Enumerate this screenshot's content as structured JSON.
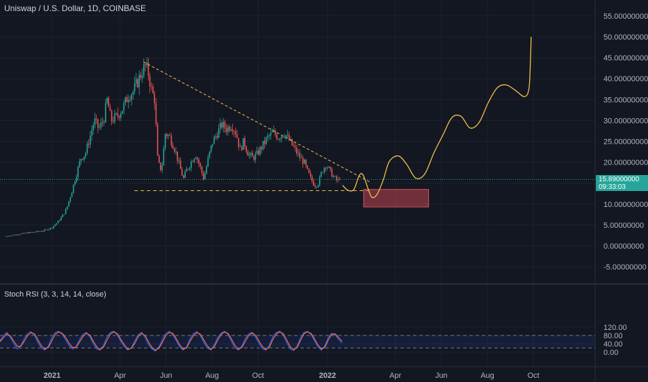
{
  "header": {
    "title": "Uniswap / U.S. Dollar, 1D, COINBASE"
  },
  "indicator": {
    "title": "Stoch RSI (3, 3, 14, 14, close)"
  },
  "price_badge": {
    "price": "15.89000000",
    "countdown": "09:33:03"
  },
  "colors": {
    "background": "#131722",
    "up": "#26a69a",
    "down": "#ef5350",
    "projection": "#f5c04a",
    "k_line": "#2962ff",
    "d_line": "#ff6d3a",
    "zone": "#e0505a"
  },
  "chart_data": [
    {
      "type": "candlestick",
      "title": "Uniswap / U.S. Dollar, 1D, COINBASE",
      "y_ticks": [
        "55.00000000",
        "50.00000000",
        "45.00000000",
        "40.00000000",
        "35.00000000",
        "30.00000000",
        "25.00000000",
        "20.00000000",
        "15.00000000",
        "10.00000000",
        "5.00000000",
        "0.00000000",
        "-5.00000000"
      ],
      "y_tick_values": [
        55,
        50,
        45,
        40,
        35,
        30,
        25,
        20,
        15,
        10,
        5,
        0,
        -5
      ],
      "x_ticks": [
        "2021",
        "Apr",
        "Jun",
        "Aug",
        "Oct",
        "2022",
        "Apr",
        "Jun",
        "Aug",
        "Oct"
      ],
      "x_tick_dates": [
        "2021-01-01",
        "2021-04-01",
        "2021-06-01",
        "2021-08-01",
        "2021-10-01",
        "2022-01-01",
        "2022-04-01",
        "2022-06-01",
        "2022-08-01",
        "2022-10-01"
      ],
      "last_price": 15.89,
      "price_path": [
        [
          "2020-11-01",
          2.3
        ],
        [
          "2020-11-25",
          3.0
        ],
        [
          "2020-12-20",
          3.6
        ],
        [
          "2020-12-31",
          4.3
        ],
        [
          "2021-01-08",
          5.6
        ],
        [
          "2021-01-14",
          7.0
        ],
        [
          "2021-01-20",
          8.8
        ],
        [
          "2021-01-27",
          13.0
        ],
        [
          "2021-02-02",
          17.0
        ],
        [
          "2021-02-08",
          21.0
        ],
        [
          "2021-02-14",
          22.0
        ],
        [
          "2021-02-20",
          26.0
        ],
        [
          "2021-02-26",
          30.0
        ],
        [
          "2021-03-04",
          28.0
        ],
        [
          "2021-03-10",
          30.0
        ],
        [
          "2021-03-15",
          35.0
        ],
        [
          "2021-03-20",
          30.0
        ],
        [
          "2021-03-28",
          31.0
        ],
        [
          "2021-04-05",
          33.0
        ],
        [
          "2021-04-12",
          36.0
        ],
        [
          "2021-04-19",
          37.0
        ],
        [
          "2021-04-26",
          40.0
        ],
        [
          "2021-05-01",
          42.0
        ],
        [
          "2021-05-05",
          43.0
        ],
        [
          "2021-05-09",
          41.0
        ],
        [
          "2021-05-13",
          37.0
        ],
        [
          "2021-05-17",
          35.0
        ],
        [
          "2021-05-21",
          20.0
        ],
        [
          "2021-05-26",
          18.0
        ],
        [
          "2021-05-31",
          27.0
        ],
        [
          "2021-06-06",
          26.0
        ],
        [
          "2021-06-13",
          23.0
        ],
        [
          "2021-06-19",
          19.0
        ],
        [
          "2021-06-24",
          16.0
        ],
        [
          "2021-06-28",
          18.0
        ],
        [
          "2021-07-04",
          20.0
        ],
        [
          "2021-07-10",
          22.0
        ],
        [
          "2021-07-16",
          19.0
        ],
        [
          "2021-07-21",
          16.0
        ],
        [
          "2021-07-27",
          21.0
        ],
        [
          "2021-08-02",
          25.0
        ],
        [
          "2021-08-08",
          27.0
        ],
        [
          "2021-08-14",
          29.0
        ],
        [
          "2021-08-20",
          28.0
        ],
        [
          "2021-08-27",
          29.0
        ],
        [
          "2021-09-02",
          27.0
        ],
        [
          "2021-09-07",
          23.0
        ],
        [
          "2021-09-12",
          25.0
        ],
        [
          "2021-09-18",
          22.0
        ],
        [
          "2021-09-24",
          21.0
        ],
        [
          "2021-09-30",
          22.0
        ],
        [
          "2021-10-07",
          24.0
        ],
        [
          "2021-10-14",
          26.0
        ],
        [
          "2021-10-21",
          27.0
        ],
        [
          "2021-10-28",
          26.0
        ],
        [
          "2021-11-05",
          27.0
        ],
        [
          "2021-11-12",
          25.0
        ],
        [
          "2021-11-19",
          23.0
        ],
        [
          "2021-11-26",
          21.0
        ],
        [
          "2021-12-01",
          20.0
        ],
        [
          "2021-12-05",
          18.0
        ],
        [
          "2021-12-10",
          16.0
        ],
        [
          "2021-12-15",
          14.5
        ],
        [
          "2021-12-20",
          15.0
        ],
        [
          "2021-12-25",
          18.0
        ],
        [
          "2021-12-30",
          19.5
        ],
        [
          "2022-01-04",
          18.0
        ],
        [
          "2022-01-09",
          16.5
        ],
        [
          "2022-01-14",
          15.5
        ],
        [
          "2022-01-18",
          15.89
        ]
      ],
      "annotations": {
        "descending_trendline": [
          [
            "2021-05-02",
            44.0
          ],
          [
            "2022-02-26",
            15.3
          ]
        ],
        "support_line": [
          [
            "2021-04-20",
            13.2
          ],
          [
            "2022-02-28",
            13.2
          ]
        ],
        "projection_path": [
          [
            "2022-01-21",
            14.5
          ],
          [
            "2022-01-28",
            13.3
          ],
          [
            "2022-02-05",
            13.5
          ],
          [
            "2022-02-12",
            16.8
          ],
          [
            "2022-02-17",
            17.0
          ],
          [
            "2022-02-24",
            13.6
          ],
          [
            "2022-03-01",
            11.6
          ],
          [
            "2022-03-08",
            12.4
          ],
          [
            "2022-03-16",
            15.8
          ],
          [
            "2022-03-24",
            20.2
          ],
          [
            "2022-04-05",
            21.5
          ],
          [
            "2022-04-16",
            19.5
          ],
          [
            "2022-04-28",
            16.2
          ],
          [
            "2022-05-10",
            17.2
          ],
          [
            "2022-05-22",
            22.2
          ],
          [
            "2022-06-03",
            26.5
          ],
          [
            "2022-06-15",
            30.7
          ],
          [
            "2022-06-27",
            31.0
          ],
          [
            "2022-07-09",
            28.2
          ],
          [
            "2022-07-21",
            29.5
          ],
          [
            "2022-08-02",
            34.2
          ],
          [
            "2022-08-14",
            37.8
          ],
          [
            "2022-08-26",
            38.5
          ],
          [
            "2022-09-07",
            37.2
          ],
          [
            "2022-09-19",
            35.7
          ],
          [
            "2022-09-25",
            37.5
          ],
          [
            "2022-09-27",
            44.0
          ],
          [
            "2022-09-28",
            50.0
          ]
        ],
        "target_zone": {
          "start": "2022-02-18",
          "end": "2022-05-15",
          "top": 13.5,
          "bottom": 9.3
        }
      }
    },
    {
      "type": "line",
      "title": "Stoch RSI (3, 3, 14, 14, close)",
      "y_ticks": [
        "120.00",
        "80.00",
        "40.00",
        "0.00"
      ],
      "y_tick_values": [
        120,
        80,
        40,
        0
      ],
      "bands": {
        "upper": 80,
        "lower": 20
      },
      "series": [
        {
          "name": "K",
          "values": [
            55,
            80,
            95,
            70,
            40,
            15,
            30,
            65,
            90,
            98,
            80,
            45,
            20,
            10,
            30,
            70,
            95,
            100,
            85,
            60,
            30,
            15,
            25,
            60,
            85,
            95,
            75,
            40,
            15,
            10,
            35,
            75,
            95,
            100,
            80,
            50,
            25,
            10,
            20,
            55,
            85,
            95,
            70,
            35,
            15,
            5,
            25,
            60,
            90,
            100,
            85,
            55,
            25,
            10,
            25,
            65,
            90,
            98,
            80,
            45,
            20,
            10,
            35,
            70,
            92,
            100,
            85,
            50,
            20,
            10,
            30,
            65,
            88,
            95,
            70,
            40,
            15,
            10,
            35,
            75,
            95,
            100,
            80,
            45,
            15,
            8,
            30,
            70,
            95,
            100,
            85,
            55,
            25,
            10,
            30,
            70,
            90,
            85,
            60,
            45
          ]
        },
        {
          "name": "D",
          "values": [
            50,
            70,
            88,
            78,
            52,
            28,
            28,
            52,
            80,
            93,
            88,
            58,
            30,
            15,
            22,
            55,
            85,
            97,
            90,
            70,
            42,
            22,
            22,
            48,
            75,
            90,
            82,
            52,
            25,
            12,
            25,
            60,
            88,
            97,
            88,
            60,
            35,
            15,
            18,
            42,
            75,
            90,
            80,
            48,
            22,
            10,
            18,
            48,
            80,
            95,
            90,
            65,
            35,
            15,
            20,
            52,
            80,
            94,
            86,
            58,
            30,
            14,
            25,
            58,
            85,
            96,
            90,
            62,
            32,
            14,
            22,
            52,
            80,
            92,
            80,
            52,
            25,
            12,
            25,
            62,
            88,
            97,
            88,
            58,
            25,
            12,
            22,
            58,
            88,
            97,
            90,
            65,
            35,
            15,
            22,
            58,
            85,
            88,
            70,
            52
          ]
        }
      ]
    }
  ]
}
